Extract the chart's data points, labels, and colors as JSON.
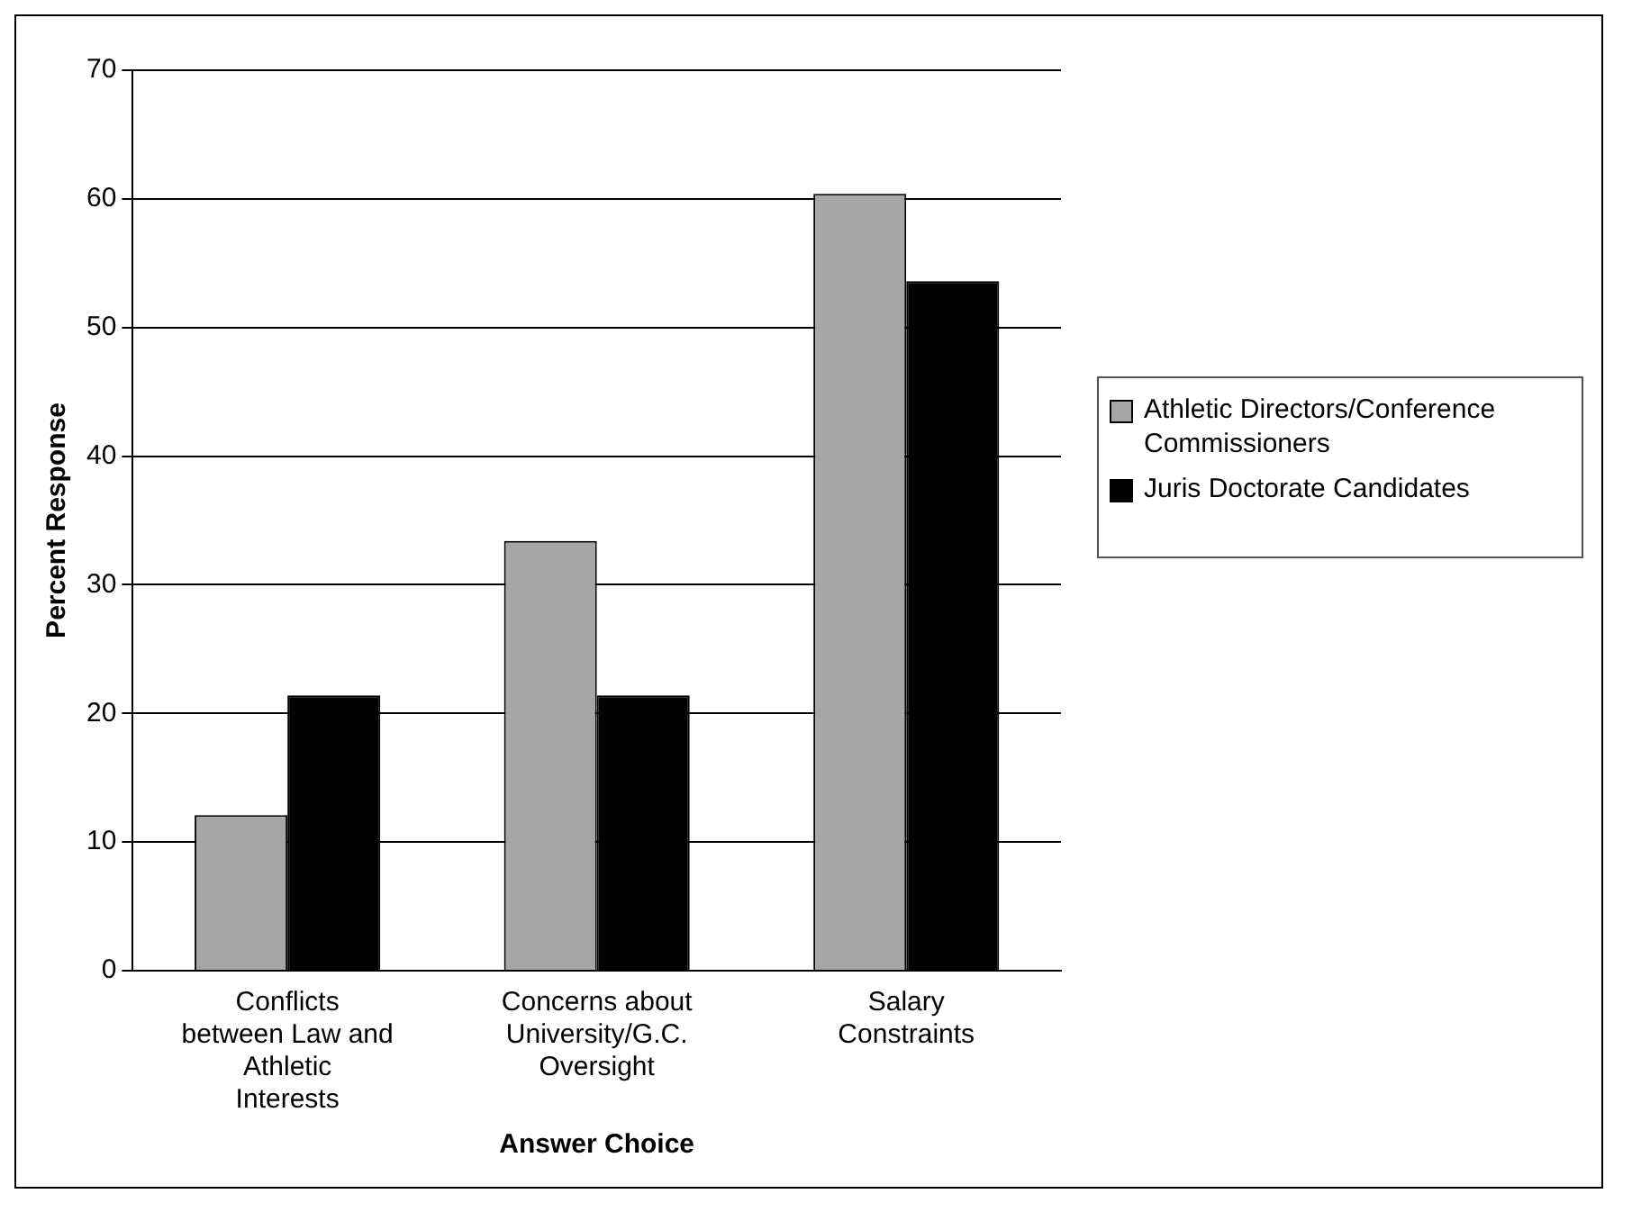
{
  "chart_data": {
    "type": "bar",
    "xlabel": "Answer Choice",
    "ylabel": "Percent Response",
    "categories": [
      "Conflicts between Law and Athletic Interests",
      "Concerns about University/G.C. Oversight",
      "Salary Constraints"
    ],
    "series": [
      {
        "name": "Athletic Directors/Conference Commissioners",
        "color": "#a6a6a6",
        "values": [
          12.1,
          33.4,
          60.4
        ]
      },
      {
        "name": "Juris Doctorate Candidates",
        "color": "#000000",
        "values": [
          21.4,
          21.4,
          53.6
        ]
      }
    ],
    "ylim": [
      0,
      70
    ],
    "yticks": [
      0,
      10,
      20,
      30,
      40,
      50,
      60,
      70
    ],
    "grid": "y",
    "legend": "right"
  }
}
